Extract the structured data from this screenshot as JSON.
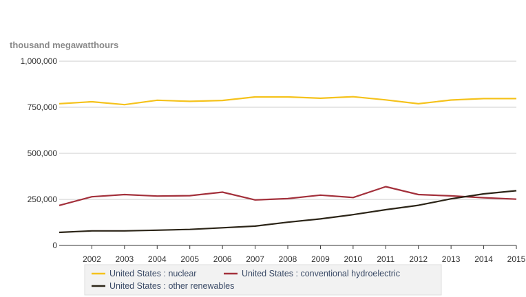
{
  "chart_data": {
    "type": "line",
    "ylabel": "thousand megawatthours",
    "x": [
      2001,
      2002,
      2003,
      2004,
      2005,
      2006,
      2007,
      2008,
      2009,
      2010,
      2011,
      2012,
      2013,
      2014,
      2015
    ],
    "x_tick_labels": [
      "2002",
      "2003",
      "2004",
      "2005",
      "2006",
      "2007",
      "2008",
      "2009",
      "2010",
      "2011",
      "2012",
      "2013",
      "2014",
      "2015"
    ],
    "y_tick_labels": [
      "1,000,000",
      "750,000",
      "500,000",
      "250,000",
      "0"
    ],
    "y_ticks": [
      1000000,
      750000,
      500000,
      250000,
      0
    ],
    "ylim": [
      0,
      1000000
    ],
    "grid": true,
    "legend_position": "bottom",
    "series": [
      {
        "name": "United States : nuclear",
        "color": "#f5c21b",
        "values": [
          769000,
          780000,
          764000,
          788000,
          782000,
          787000,
          806000,
          806000,
          799000,
          807000,
          790000,
          769000,
          789000,
          797000,
          797000
        ]
      },
      {
        "name": "United States : conventional hydroelectric",
        "color": "#a3303b",
        "values": [
          217000,
          264000,
          276000,
          268000,
          270000,
          289000,
          247000,
          254000,
          273000,
          260000,
          319000,
          276000,
          269000,
          259000,
          251000
        ]
      },
      {
        "name": "United States : other renewables",
        "color": "#2b2417",
        "values": [
          71000,
          79000,
          79000,
          83000,
          87000,
          96000,
          105000,
          126000,
          144000,
          167000,
          194000,
          218000,
          253000,
          280000,
          297000
        ]
      }
    ]
  }
}
